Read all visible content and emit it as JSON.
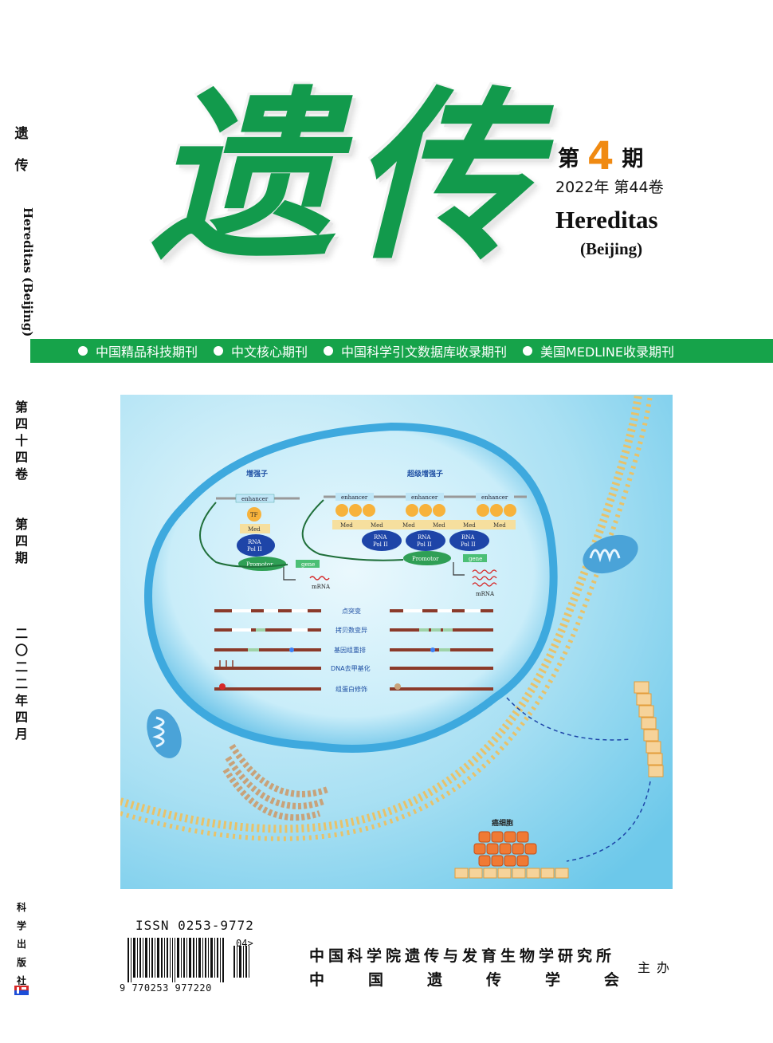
{
  "spine": {
    "title_chars": [
      "遗",
      "传"
    ],
    "english": "Hereditas (Beijing)",
    "volume_chars": [
      "第",
      "四",
      "十",
      "四",
      "卷"
    ],
    "issue_chars": [
      "第",
      "四",
      "期"
    ],
    "date_chars": [
      "二",
      "〇",
      "二",
      "二",
      "年",
      "四",
      "月"
    ],
    "publisher_chars": [
      "科",
      "学",
      "出",
      "版",
      "社"
    ]
  },
  "masthead": {
    "title_char_1": "遗",
    "title_char_2": "传",
    "issue_prefix": "第",
    "issue_number": "4",
    "issue_suffix": "期",
    "year_volume": "2022年  第44卷",
    "english_title": "Hereditas",
    "english_subtitle": "(Beijing)",
    "title_color": "#129a4c",
    "issue_color": "#f08a12"
  },
  "index_bar": {
    "color": "#16a34a",
    "items": [
      "中国精品科技期刊",
      "中文核心期刊",
      "中国科学引文数据库收录期刊",
      "美国MEDLINE收录期刊"
    ]
  },
  "cover_art": {
    "enhancer_title": "增强子",
    "super_enhancer_title": "超级增强子",
    "enhancer": "enhancer",
    "tf": "TF",
    "med": "Med",
    "rna_pol_1": "RNA",
    "rna_pol_2": "Pol II",
    "promotor": "Promotor",
    "gene": "gene",
    "mrna": "mRNA",
    "variant_labels": [
      "点突变",
      "拷贝数变异",
      "基因组重排",
      "DNA去甲基化",
      "组蛋白修饰"
    ],
    "cancer_cell": "癌细胞"
  },
  "footer": {
    "issn": "ISSN 0253-9772",
    "barcode_number": "9 770253 977220",
    "barcode_addon": "04>",
    "sponsor_1": "中国科学院遗传与发育生物学研究所",
    "sponsor_2_chars": [
      "中",
      "国",
      "遗",
      "传",
      "学",
      "会"
    ],
    "host": "主办"
  }
}
